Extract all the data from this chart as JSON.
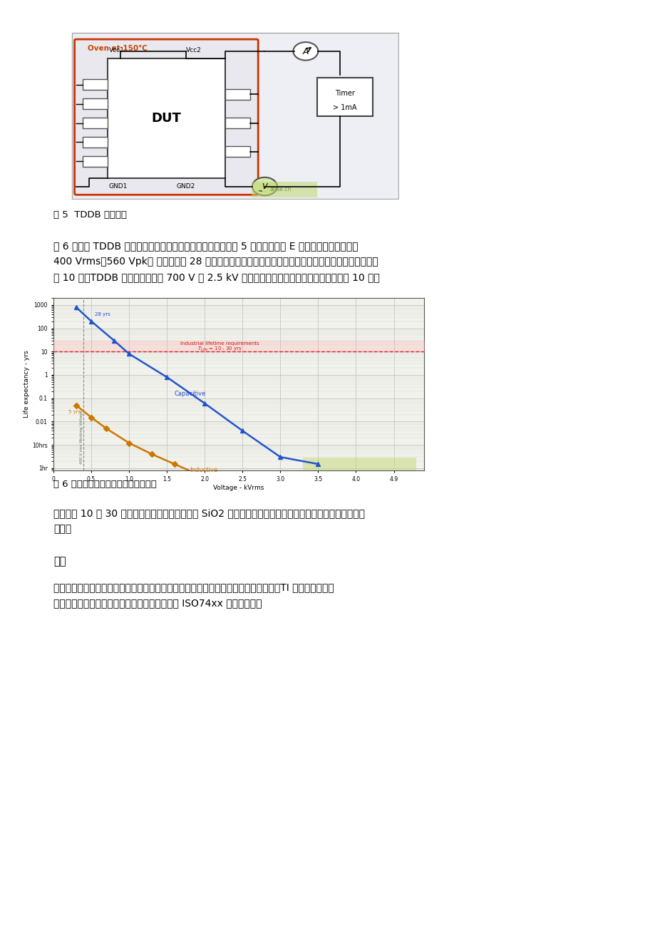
{
  "background_color": "#ffffff",
  "page_width": 9.2,
  "page_height": 13.02,
  "fig5_caption": "图 5  TDDB 测试方法",
  "fig6_caption": "图 6 电容和电感隔离器的预计使用寿命",
  "section_title": "结论",
  "para1_lines": [
    "图 6 所示的 TDDB 曲线表明，电容隔离器的测试数据（时间为 5 年）完全匹配 E 模型预测，从而得出在",
    "400 Vrms（560 Vpk） 工作电压下 28 年的预计使用寿命，而相同电压下电感隔离器的预计使用寿命则小",
    "于 10 年。TDDB 曲线还表明，在 700 V 和 2.5 kV 之间电容隔离器的寿命比电感隔离器长约 10 倍。"
  ],
  "para2_lines": [
    "若要达到 10 到 30 年的工业预计使用寿命，使用 SiO2 电介质的电容隔离器是实现这个目标唯一可行的解决",
    "方案。"
  ],
  "para3_lines": [
    "因其高可靠性、低电流消耗、高带宽和长使用寿命，数字电容隔离器具有优异的性能。TI 提供各种各样的",
    "数字电容隔离器，包括隔离总线收发器和新一代 ISO74xx 电容隔离器。"
  ],
  "text_color": "#000000",
  "text_fontsize": 10.0,
  "section_fontsize": 10.5,
  "caption_fontsize": 9.5
}
